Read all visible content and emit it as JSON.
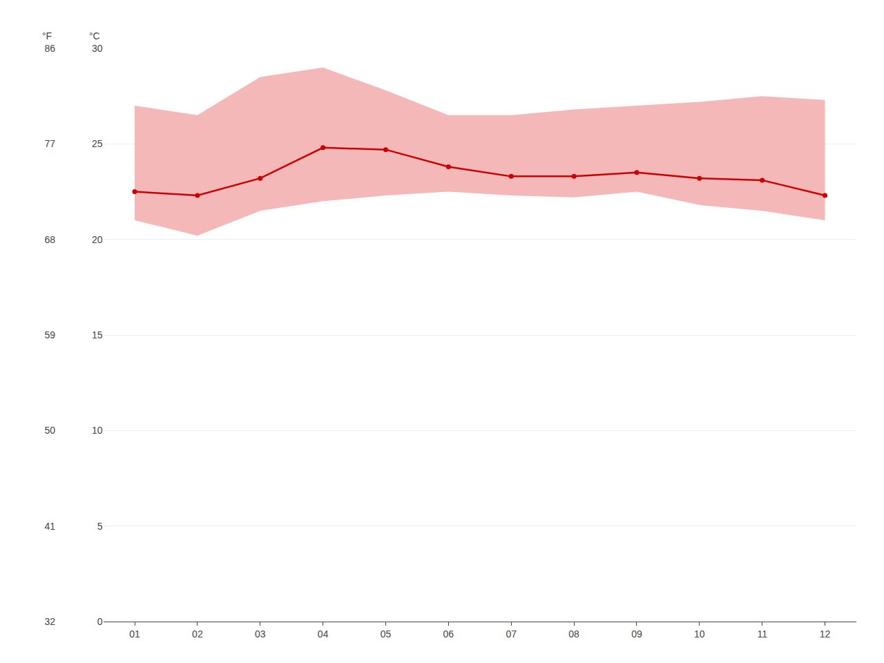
{
  "chart_data": {
    "type": "line",
    "x": [
      1,
      2,
      3,
      4,
      5,
      6,
      7,
      8,
      9,
      10,
      11,
      12
    ],
    "xlim": [
      0.5,
      12.5
    ],
    "xticks": [
      {
        "value": 1,
        "label": "01"
      },
      {
        "value": 2,
        "label": "02"
      },
      {
        "value": 3,
        "label": "03"
      },
      {
        "value": 4,
        "label": "04"
      },
      {
        "value": 5,
        "label": "05"
      },
      {
        "value": 6,
        "label": "06"
      },
      {
        "value": 7,
        "label": "07"
      },
      {
        "value": 8,
        "label": "08"
      },
      {
        "value": 9,
        "label": "09"
      },
      {
        "value": 10,
        "label": "10"
      },
      {
        "value": 11,
        "label": "11"
      },
      {
        "value": 12,
        "label": "12"
      }
    ],
    "ylabel": "°C",
    "ylim": [
      0,
      30
    ],
    "yticks": [
      0,
      5,
      10,
      15,
      20,
      25,
      30
    ],
    "y2label": "°F",
    "y2lim": [
      32,
      86
    ],
    "y2ticks": [
      32,
      41,
      50,
      59,
      68,
      77,
      86
    ],
    "grid": "y",
    "series": [
      {
        "type": "area",
        "color": "#f5b8b8",
        "low": [
          21.0,
          20.2,
          21.5,
          22.0,
          22.3,
          22.5,
          22.3,
          22.2,
          22.5,
          21.8,
          21.5,
          21.0
        ],
        "high": [
          27.0,
          26.5,
          28.5,
          29.0,
          27.8,
          26.5,
          26.5,
          26.8,
          27.0,
          27.2,
          27.5,
          27.3
        ]
      },
      {
        "type": "line",
        "color": "#cc0000",
        "marker": "circle",
        "values": [
          22.5,
          22.3,
          23.2,
          24.8,
          24.7,
          23.8,
          23.3,
          23.3,
          23.5,
          23.2,
          23.1,
          22.3
        ]
      }
    ]
  }
}
